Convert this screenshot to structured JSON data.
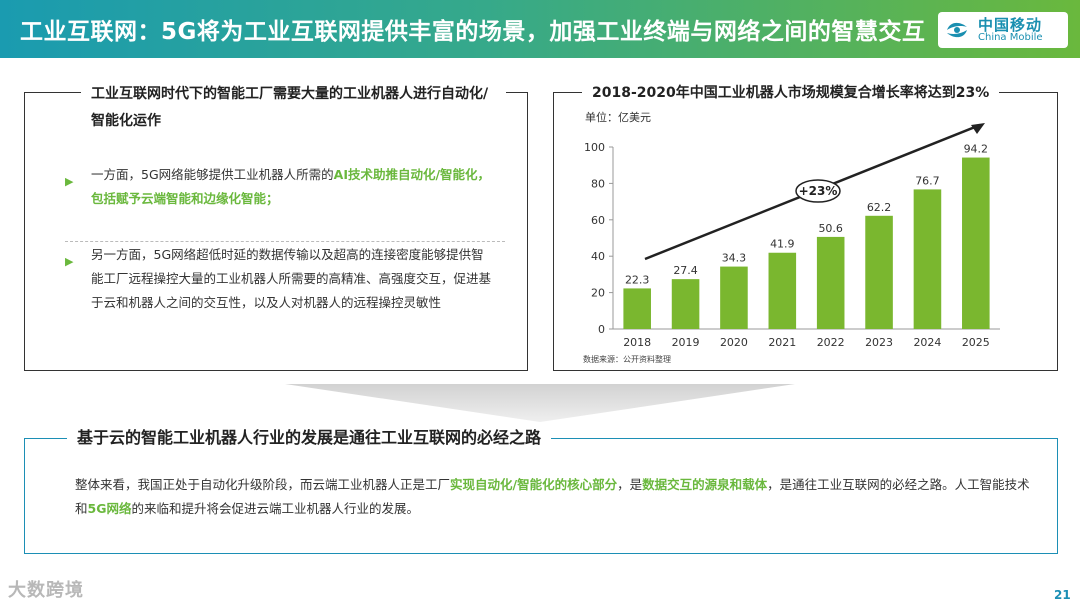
{
  "header": {
    "title": "工业互联网：5G将为工业互联网提供丰富的场景，加强工业终端与网络之间的智慧交互"
  },
  "logo": {
    "cn": "中国移动",
    "en": "China Mobile"
  },
  "left_panel": {
    "title": "工业互联网时代下的智能工厂需要大量的工业机器人进行自动化/智能化运作",
    "bullet1_prefix": "一方面，5G网络能够提供工业机器人所需的",
    "bullet1_highlight": "AI技术助推自动化/智能化，包括赋予云端智能和边缘化智能；",
    "bullet2": "另一方面，5G网络超低时延的数据传输以及超高的连接密度能够提供智能工厂远程操控大量的工业机器人所需要的高精准、高强度交互，促进基于云和机器人之间的交互性，以及人对机器人的远程操控灵敏性"
  },
  "bottom_panel": {
    "title": "基于云的智能工业机器人行业的发展是通往工业互联网的必经之路",
    "t1": "整体来看，我国正处于自动化升级阶段，而云端工业机器人正是工厂",
    "h1": "实现自动化/智能化的核心部分",
    "t2": "，是",
    "h2": "数据交互的源泉和载体",
    "t3": "，是通往工业互联网的必经之路。人工智能技术和",
    "h3": "5G网络",
    "t4": "的来临和提升将会促进云端工业机器人行业的发展。"
  },
  "footer": {
    "watermark": "大数跨境",
    "page": "21"
  },
  "colors": {
    "bar": "#7ab72f",
    "accent": "#1c8fb5",
    "highlight": "#6ab83d"
  },
  "chart_data": {
    "type": "bar",
    "title": "2018-2020年中国工业机器人市场规模复合增长率将达到23%",
    "unit_label": "单位：亿美元",
    "source": "数据来源：公开资料整理",
    "categories": [
      "2018",
      "2019",
      "2020",
      "2021",
      "2022",
      "2023",
      "2024",
      "2025"
    ],
    "values": [
      22.3,
      27.4,
      34.3,
      41.9,
      50.6,
      62.2,
      76.7,
      94.2
    ],
    "yticks": [
      0,
      20,
      40,
      60,
      80,
      100
    ],
    "ylim": [
      0,
      100
    ],
    "annotation": "+23%",
    "grid": false,
    "legend": "none"
  }
}
